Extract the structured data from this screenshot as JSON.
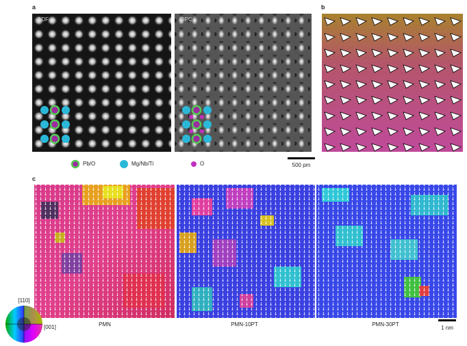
{
  "panels": {
    "a": {
      "label": "a",
      "images": [
        "ADF",
        "iDPC"
      ],
      "legend": [
        "Pb/O",
        "Mg/Nb/Ti",
        "O"
      ],
      "scale_bar": "500 pm"
    },
    "b": {
      "label": "b"
    },
    "c": {
      "label": "c",
      "images": [
        "PMN",
        "PMN-10PT",
        "PMN-30PT"
      ],
      "scale_bar": "1 nm",
      "color_wheel": [
        "[110]",
        "[001]"
      ]
    }
  }
}
